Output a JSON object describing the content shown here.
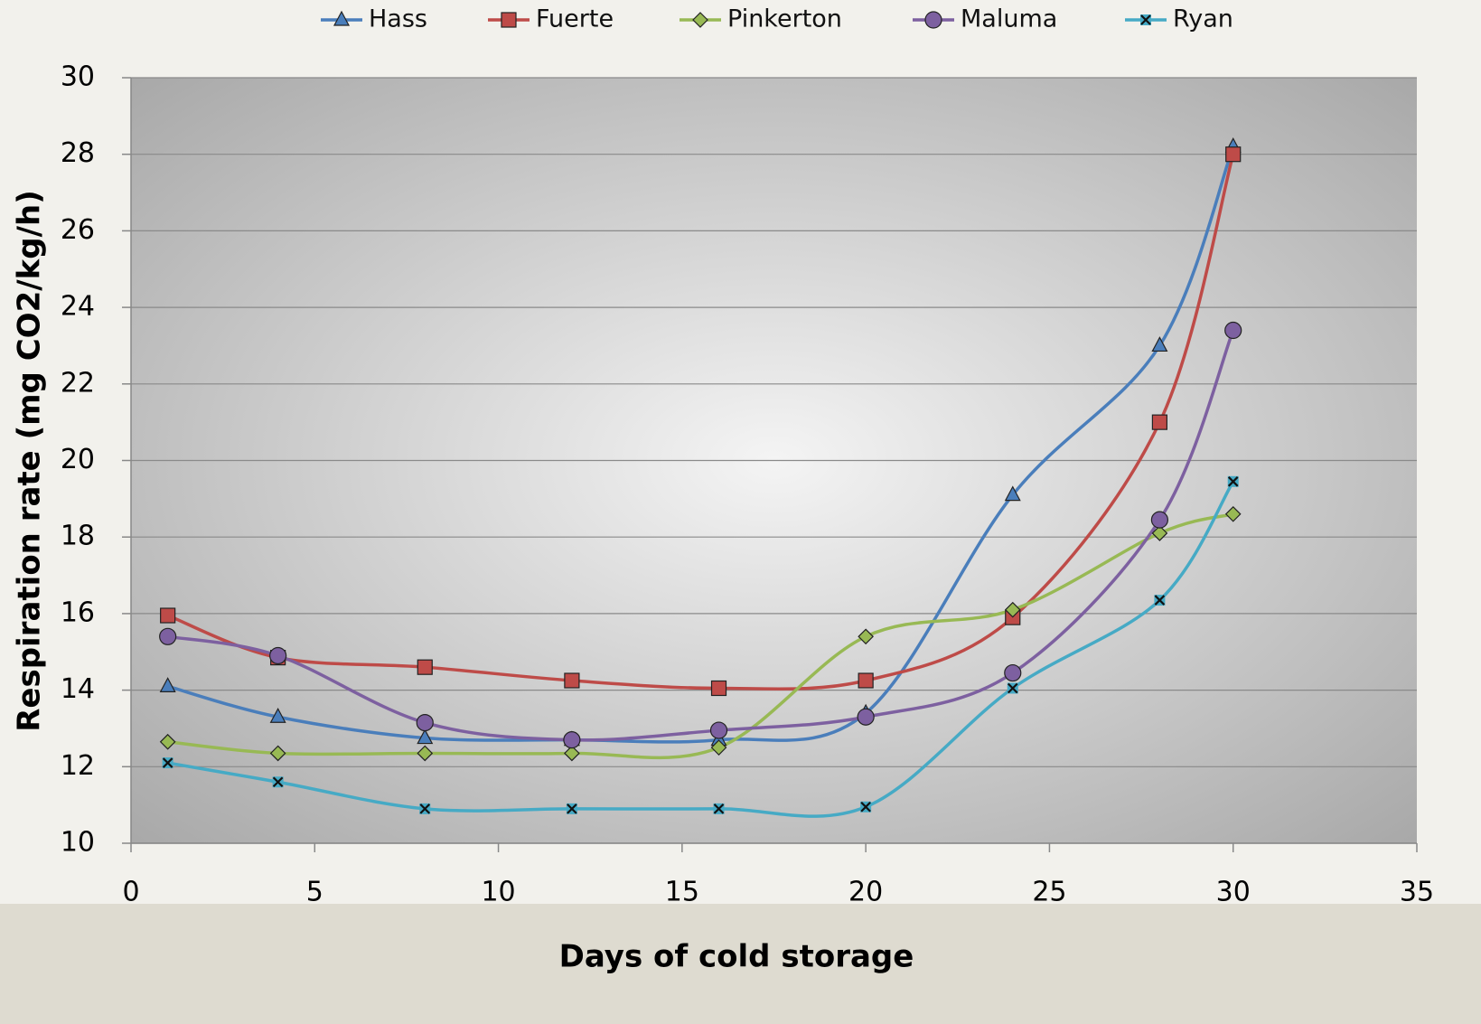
{
  "chart_data": {
    "type": "line",
    "smooth": true,
    "x_label": "Days of cold storage",
    "y_label": "Respiration rate (mg CO2/kg/h)",
    "x": [
      1,
      4,
      8,
      12,
      16,
      20,
      24,
      28,
      30
    ],
    "series": [
      {
        "name": "Hass",
        "color": "#4a7ebb",
        "marker": "triangle",
        "values": [
          14.1,
          13.3,
          12.75,
          12.7,
          12.7,
          13.4,
          19.1,
          23.0,
          28.2
        ]
      },
      {
        "name": "Fuerte",
        "color": "#be4b48",
        "marker": "square",
        "values": [
          15.95,
          14.85,
          14.6,
          14.25,
          14.05,
          14.25,
          15.9,
          21.0,
          28.0
        ]
      },
      {
        "name": "Pinkerton",
        "color": "#98b954",
        "marker": "diamond",
        "values": [
          12.65,
          12.35,
          12.35,
          12.35,
          12.5,
          15.4,
          16.1,
          18.1,
          18.6
        ]
      },
      {
        "name": "Maluma",
        "color": "#7d60a0",
        "marker": "circle",
        "values": [
          15.4,
          14.9,
          13.15,
          12.7,
          12.95,
          13.3,
          14.45,
          18.45,
          23.4
        ]
      },
      {
        "name": "Ryan",
        "color": "#46aac5",
        "marker": "xsquare",
        "values": [
          12.1,
          11.6,
          10.9,
          10.9,
          10.9,
          10.95,
          14.05,
          16.35,
          19.45
        ]
      }
    ],
    "xlim": [
      0,
      35
    ],
    "xticks": [
      0,
      5,
      10,
      15,
      20,
      25,
      30,
      35
    ],
    "ylim": [
      10,
      30
    ],
    "yticks": [
      10,
      12,
      14,
      16,
      18,
      20,
      22,
      24,
      26,
      28,
      30
    ],
    "grid": true,
    "legend": "top"
  }
}
